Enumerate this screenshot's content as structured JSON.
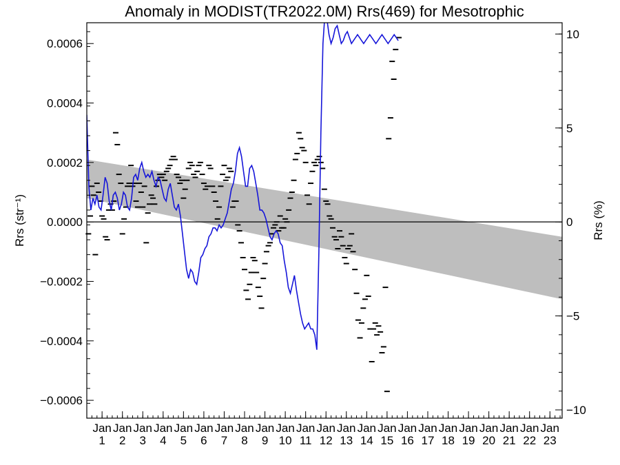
{
  "chart_data": {
    "type": "line",
    "title": "Anomaly in MODIST(TR2022.0M) Rrs(469) for Mesotrophic",
    "ylabel_left": "Rrs (str⁻¹)",
    "ylabel_right": "Rrs (%)",
    "ylim": [
      -0.00066,
      0.00067
    ],
    "ylim_right": [
      -10.44,
      10.6
    ],
    "xlim": [
      0.25,
      23.6
    ],
    "x_ticks": [
      {
        "x": 1,
        "top": "Jan",
        "bottom": "1"
      },
      {
        "x": 2,
        "top": "Jan",
        "bottom": "2"
      },
      {
        "x": 3,
        "top": "Jan",
        "bottom": "3"
      },
      {
        "x": 4,
        "top": "Jan",
        "bottom": "4"
      },
      {
        "x": 5,
        "top": "Jan",
        "bottom": "5"
      },
      {
        "x": 6,
        "top": "Jan",
        "bottom": "6"
      },
      {
        "x": 7,
        "top": "Jan",
        "bottom": "7"
      },
      {
        "x": 8,
        "top": "Jan",
        "bottom": "8"
      },
      {
        "x": 9,
        "top": "Jan",
        "bottom": "9"
      },
      {
        "x": 10,
        "top": "Jan",
        "bottom": "10"
      },
      {
        "x": 11,
        "top": "Jan",
        "bottom": "11"
      },
      {
        "x": 12,
        "top": "Jan",
        "bottom": "12"
      },
      {
        "x": 13,
        "top": "Jan",
        "bottom": "13"
      },
      {
        "x": 14,
        "top": "Jan",
        "bottom": "14"
      },
      {
        "x": 15,
        "top": "Jan",
        "bottom": "15"
      },
      {
        "x": 16,
        "top": "Jan",
        "bottom": "16"
      },
      {
        "x": 17,
        "top": "Jan",
        "bottom": "17"
      },
      {
        "x": 18,
        "top": "Jan",
        "bottom": "18"
      },
      {
        "x": 19,
        "top": "Jan",
        "bottom": "19"
      },
      {
        "x": 20,
        "top": "Jan",
        "bottom": "20"
      },
      {
        "x": 21,
        "top": "Jan",
        "bottom": "21"
      },
      {
        "x": 22,
        "top": "Jan",
        "bottom": "22"
      },
      {
        "x": 23,
        "top": "Jan",
        "bottom": "23"
      }
    ],
    "y_ticks_left": [
      "0.0006",
      "0.0004",
      "0.0002",
      "0.0000",
      "−0.0002",
      "−0.0004",
      "−0.0006"
    ],
    "y_tick_values_left": [
      0.0006,
      0.0004,
      0.0002,
      0.0,
      -0.0002,
      -0.0004,
      -0.0006
    ],
    "y_ticks_right": [
      "10",
      "5",
      "0",
      "−5",
      "−10"
    ],
    "y_tick_values_right": [
      10,
      5,
      0,
      -5,
      -10
    ],
    "band": {
      "x": [
        0.25,
        23.6
      ],
      "upper": [
        0.00021,
        -5e-05
      ],
      "lower": [
        8e-05,
        -0.00026
      ],
      "color": "#bebebe"
    },
    "zero_line": 0.0,
    "monthly_points": [
      [
        0.33,
        -4e-05
      ],
      [
        0.42,
        2e-05
      ],
      [
        0.5,
        0.00012
      ],
      [
        0.58,
        9e-05
      ],
      [
        0.67,
        -0.00011
      ],
      [
        0.75,
        0.00013
      ],
      [
        0.83,
        0.0001
      ],
      [
        0.92,
        7e-05
      ],
      [
        1.0,
        2e-05
      ],
      [
        1.08,
        1e-05
      ],
      [
        1.17,
        -5e-05
      ],
      [
        1.25,
        -6e-05
      ],
      [
        1.33,
        4e-05
      ],
      [
        1.42,
        6e-05
      ],
      [
        1.5,
        4e-05
      ],
      [
        1.58,
        7e-05
      ],
      [
        1.67,
        0.0003
      ],
      [
        1.75,
        0.00026
      ],
      [
        1.83,
        0.00016
      ],
      [
        1.92,
        0.00013
      ],
      [
        2.0,
        -4e-05
      ],
      [
        2.08,
        1e-05
      ],
      [
        2.17,
        5e-05
      ],
      [
        2.25,
        0.00012
      ],
      [
        2.33,
        0.00013
      ],
      [
        2.42,
        0.00019
      ],
      [
        2.5,
        0.00012
      ],
      [
        2.58,
        0.00013
      ],
      [
        2.67,
        7e-05
      ],
      [
        2.75,
        5e-05
      ],
      [
        2.83,
        0.00013
      ],
      [
        2.92,
        0.0001
      ],
      [
        3.0,
        5e-05
      ],
      [
        3.08,
        0.00012
      ],
      [
        3.17,
        -7e-05
      ],
      [
        3.25,
        3e-05
      ],
      [
        3.33,
        6e-05
      ],
      [
        3.42,
        9e-05
      ],
      [
        3.5,
        8e-05
      ],
      [
        3.58,
        6e-05
      ],
      [
        3.67,
        0.00012
      ],
      [
        3.75,
        0.00014
      ],
      [
        3.83,
        0.00016
      ],
      [
        3.92,
        0.00015
      ],
      [
        4.0,
        0.00016
      ],
      [
        4.08,
        0.00014
      ],
      [
        4.17,
        0.00017
      ],
      [
        4.25,
        0.00018
      ],
      [
        4.33,
        0.00019
      ],
      [
        4.42,
        0.00021
      ],
      [
        4.5,
        0.00022
      ],
      [
        4.58,
        0.00021
      ],
      [
        4.67,
        0.00016
      ],
      [
        4.75,
        0.00015
      ],
      [
        4.83,
        0.00013
      ],
      [
        4.92,
        0.00014
      ],
      [
        5.0,
        8e-05
      ],
      [
        5.08,
        0.00011
      ],
      [
        5.17,
        0.00014
      ],
      [
        5.25,
        0.00018
      ],
      [
        5.33,
        0.0002
      ],
      [
        5.42,
        0.00019
      ],
      [
        5.5,
        0.00016
      ],
      [
        5.58,
        0.00015
      ],
      [
        5.67,
        0.00017
      ],
      [
        5.75,
        0.00019
      ],
      [
        5.83,
        0.0002
      ],
      [
        5.92,
        0.00016
      ],
      [
        6.0,
        0.00013
      ],
      [
        6.08,
        0.00011
      ],
      [
        6.17,
        0.00012
      ],
      [
        6.25,
        0.00019
      ],
      [
        6.33,
        0.00018
      ],
      [
        6.42,
        0.00012
      ],
      [
        6.5,
        0.0001
      ],
      [
        6.58,
        7e-05
      ],
      [
        6.67,
        1e-05
      ],
      [
        6.75,
        5e-05
      ],
      [
        6.83,
        0.00012
      ],
      [
        6.92,
        0.00016
      ],
      [
        7.0,
        0.00019
      ],
      [
        7.08,
        0.00014
      ],
      [
        7.17,
        0.00015
      ],
      [
        7.25,
        0.00018
      ],
      [
        7.33,
        0.00017
      ],
      [
        7.42,
        5e-05
      ],
      [
        7.5,
        7e-05
      ],
      [
        7.58,
        7e-05
      ],
      [
        7.67,
        -1e-05
      ],
      [
        7.75,
        -3e-05
      ],
      [
        7.83,
        -7e-05
      ],
      [
        7.92,
        -0.00012
      ],
      [
        8.0,
        -0.00016
      ],
      [
        8.08,
        -0.00023
      ],
      [
        8.17,
        -0.00026
      ],
      [
        8.25,
        -0.00021
      ],
      [
        8.33,
        -0.00017
      ],
      [
        8.42,
        -0.00012
      ],
      [
        8.5,
        -0.00013
      ],
      [
        8.58,
        -0.00017
      ],
      [
        8.67,
        -0.00022
      ],
      [
        8.75,
        -0.00025
      ],
      [
        8.83,
        -0.00029
      ],
      [
        8.92,
        -0.00019
      ],
      [
        9.0,
        -0.00014
      ],
      [
        9.08,
        -0.0001
      ],
      [
        9.17,
        -8e-05
      ],
      [
        9.25,
        -7e-05
      ],
      [
        9.33,
        -4e-05
      ],
      [
        9.42,
        -2e-05
      ],
      [
        9.5,
        -1e-05
      ],
      [
        9.58,
        0.0
      ],
      [
        9.67,
        -3e-05
      ],
      [
        9.75,
        2e-05
      ],
      [
        9.83,
        -2e-05
      ],
      [
        9.92,
        -2e-05
      ],
      [
        10.0,
        1e-05
      ],
      [
        10.08,
        0.0
      ],
      [
        10.17,
        4e-05
      ],
      [
        10.25,
        8e-05
      ],
      [
        10.33,
        0.0001
      ],
      [
        10.42,
        0.00014
      ],
      [
        10.5,
        0.00021
      ],
      [
        10.58,
        0.00023
      ],
      [
        10.67,
        0.0003
      ],
      [
        10.75,
        0.00028
      ],
      [
        10.83,
        0.00025
      ],
      [
        10.92,
        0.00024
      ],
      [
        11.0,
        0.0002
      ],
      [
        11.08,
        9e-05
      ],
      [
        11.17,
        6e-05
      ],
      [
        11.25,
        0.00013
      ],
      [
        11.33,
        0.00017
      ],
      [
        11.42,
        0.0002
      ],
      [
        11.5,
        0.00019
      ],
      [
        11.58,
        0.00021
      ],
      [
        11.67,
        0.00022
      ],
      [
        11.75,
        0.0002
      ],
      [
        11.83,
        0.00018
      ],
      [
        11.92,
        0.00011
      ],
      [
        12.0,
        7e-05
      ],
      [
        12.08,
        6e-05
      ],
      [
        12.17,
        2e-05
      ],
      [
        12.25,
        1e-05
      ],
      [
        12.33,
        -2e-05
      ],
      [
        12.42,
        -5e-05
      ],
      [
        12.5,
        -6e-05
      ],
      [
        12.58,
        -9e-05
      ],
      [
        12.67,
        -3e-05
      ],
      [
        12.75,
        -5e-05
      ],
      [
        12.83,
        -8e-05
      ],
      [
        12.92,
        -0.00012
      ],
      [
        13.0,
        -0.00014
      ],
      [
        13.08,
        -9e-05
      ],
      [
        13.17,
        -8e-05
      ],
      [
        13.25,
        -4e-05
      ],
      [
        13.33,
        -0.0001
      ],
      [
        13.42,
        -0.00016
      ],
      [
        13.5,
        -0.00024
      ],
      [
        13.58,
        -0.00033
      ],
      [
        13.67,
        -0.00039
      ],
      [
        13.75,
        -0.00034
      ],
      [
        13.83,
        -0.00029
      ],
      [
        13.92,
        -0.00026
      ],
      [
        14.0,
        -0.00018
      ],
      [
        14.08,
        -0.00025
      ],
      [
        14.17,
        -0.00036
      ],
      [
        14.25,
        -0.00047
      ],
      [
        14.33,
        -0.00036
      ],
      [
        14.42,
        -0.00034
      ],
      [
        14.5,
        -0.00038
      ],
      [
        14.58,
        -0.00035
      ],
      [
        14.67,
        -0.00037
      ],
      [
        14.75,
        -0.00044
      ],
      [
        14.83,
        -0.00042
      ],
      [
        14.92,
        -0.00022
      ],
      [
        15.0,
        -0.00057
      ],
      [
        15.08,
        0.00028
      ],
      [
        15.17,
        0.00035
      ],
      [
        15.25,
        0.00054
      ],
      [
        15.33,
        0.00048
      ],
      [
        15.42,
        0.00058
      ],
      [
        15.5,
        0.00074
      ],
      [
        15.58,
        0.00062
      ]
    ],
    "smoothed_line": {
      "color": "#1515d9",
      "x": [
        0.25,
        0.35,
        0.45,
        0.55,
        0.65,
        0.75,
        0.85,
        0.95,
        1.05,
        1.15,
        1.25,
        1.35,
        1.45,
        1.55,
        1.65,
        1.75,
        1.85,
        1.95,
        2.05,
        2.15,
        2.25,
        2.35,
        2.45,
        2.55,
        2.65,
        2.75,
        2.85,
        2.95,
        3.05,
        3.15,
        3.25,
        3.35,
        3.45,
        3.55,
        3.65,
        3.75,
        3.85,
        3.95,
        4.05,
        4.15,
        4.25,
        4.35,
        4.45,
        4.55,
        4.65,
        4.75,
        4.85,
        4.95,
        5.05,
        5.15,
        5.25,
        5.35,
        5.45,
        5.55,
        5.65,
        5.75,
        5.85,
        5.95,
        6.05,
        6.15,
        6.25,
        6.35,
        6.45,
        6.55,
        6.65,
        6.75,
        6.85,
        6.95,
        7.05,
        7.15,
        7.25,
        7.35,
        7.45,
        7.55,
        7.65,
        7.75,
        7.85,
        7.95,
        8.05,
        8.15,
        8.25,
        8.35,
        8.45,
        8.55,
        8.65,
        8.75,
        8.85,
        8.95,
        9.05,
        9.15,
        9.25,
        9.35,
        9.45,
        9.55,
        9.65,
        9.75,
        9.85,
        9.95,
        10.05,
        10.15,
        10.25,
        10.35,
        10.45,
        10.55,
        10.65,
        10.75,
        10.85,
        10.95,
        11.05,
        11.15,
        11.25,
        11.35,
        11.45,
        11.55,
        11.65,
        11.75,
        11.85,
        11.95,
        12.05,
        12.15,
        12.25,
        12.35,
        12.45,
        12.55,
        12.65,
        12.75,
        12.85,
        12.95,
        13.05,
        13.15,
        13.25,
        13.35,
        13.45,
        13.55,
        13.65,
        13.75,
        13.85,
        13.95,
        14.05,
        14.15,
        14.25,
        14.35,
        14.45,
        14.55,
        14.65,
        14.75,
        14.85,
        14.95,
        15.05,
        15.15,
        15.25,
        15.35,
        15.45,
        15.55
      ],
      "y": [
        0.00036,
        0.00012,
        4e-05,
        8e-05,
        6e-05,
        9e-05,
        5e-05,
        4e-05,
        9e-05,
        0.00015,
        0.00013,
        7e-05,
        4e-05,
        9e-05,
        0.0001,
        8e-05,
        4e-05,
        6e-05,
        0.0001,
        9e-05,
        5e-05,
        4e-05,
        8e-05,
        0.00015,
        0.00016,
        0.00014,
        0.00018,
        0.0002,
        0.00017,
        0.00015,
        0.00016,
        0.00015,
        0.00017,
        0.00014,
        0.00012,
        0.00015,
        0.00014,
        0.00011,
        8e-05,
        7e-05,
        0.00011,
        0.00013,
        9e-05,
        5e-05,
        4e-05,
        6e-05,
        2e-05,
        -4e-05,
        -0.0001,
        -0.00016,
        -0.00019,
        -0.00016,
        -0.00017,
        -0.0002,
        -0.00021,
        -0.00017,
        -0.00012,
        -0.00011,
        -9e-05,
        -8e-05,
        -5e-05,
        -4e-05,
        -2e-05,
        -2e-05,
        -3e-05,
        -1e-05,
        -2e-05,
        -1e-05,
        1e-05,
        3e-05,
        7e-05,
        0.00011,
        0.00013,
        0.00017,
        0.00023,
        0.00025,
        0.00022,
        0.00017,
        0.00012,
        0.00012,
        0.00018,
        0.00019,
        0.00017,
        0.00013,
        9e-05,
        4e-05,
        4e-05,
        3e-05,
        1e-05,
        -2e-05,
        -5e-05,
        -6e-05,
        -4e-05,
        -3e-05,
        -4e-05,
        -7e-05,
        -8e-05,
        -0.00013,
        -0.00017,
        -0.00022,
        -0.00024,
        -0.00021,
        -0.00018,
        -0.00023,
        -0.00027,
        -0.00031,
        -0.00034,
        -0.00036,
        -0.00035,
        -0.00034,
        -0.00036,
        -0.00036,
        -0.00038,
        -0.00043,
        -0.0001,
        0.0003,
        0.0006,
        0.0007,
        0.00068,
        0.00063,
        0.0006,
        0.00062,
        0.00065,
        0.00066,
        0.00063,
        0.0006,
        0.00061,
        0.00063,
        0.00064,
        0.00062,
        0.0006,
        0.00061,
        0.00062,
        0.00063,
        0.00062,
        0.00061,
        0.0006,
        0.00061,
        0.00062,
        0.00063,
        0.00062,
        0.00061,
        0.0006,
        0.00061,
        0.00062,
        0.00063,
        0.00062,
        0.00061,
        0.0006,
        0.00061,
        0.00062,
        0.00063,
        0.00062,
        0.00061
      ]
    }
  }
}
